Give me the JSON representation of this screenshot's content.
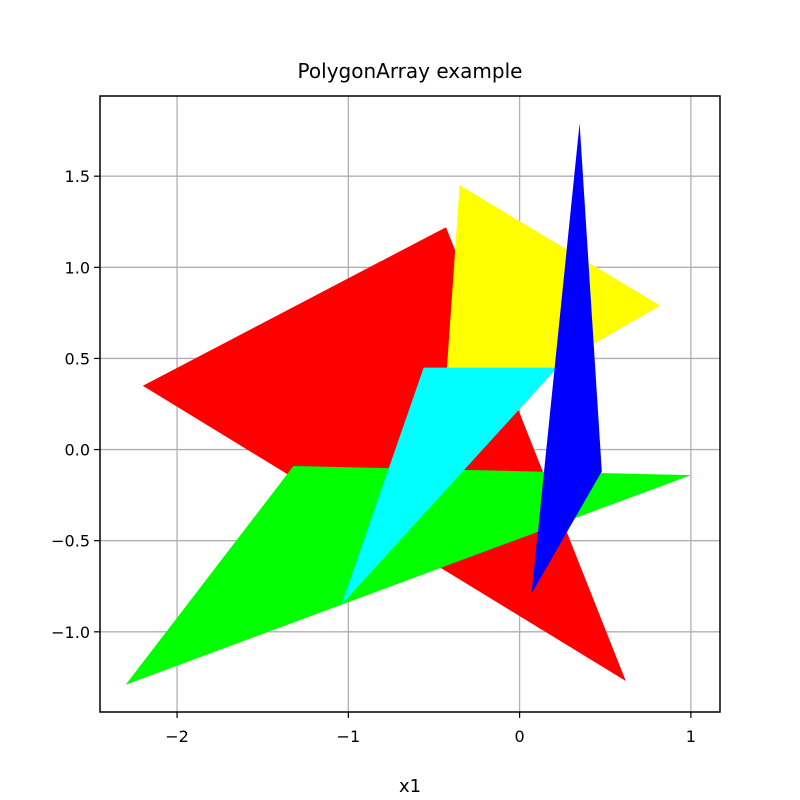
{
  "chart_data": {
    "type": "polygon",
    "title": "PolygonArray example",
    "xlabel": "x1",
    "ylabel": "",
    "xlim": [
      -2.45,
      1.17
    ],
    "ylim": [
      -1.44,
      1.94
    ],
    "xticks": [
      -2,
      -1,
      0,
      1
    ],
    "xtick_labels": [
      "−2",
      "−1",
      "0",
      "1"
    ],
    "yticks": [
      -1.0,
      -0.5,
      0.0,
      0.5,
      1.0,
      1.5
    ],
    "ytick_labels": [
      "−1.0",
      "−0.5",
      "0.0",
      "0.5",
      "1.0",
      "1.5"
    ],
    "grid": true,
    "polygons": [
      {
        "color": "#ff0000",
        "points": [
          [
            -2.2,
            0.35
          ],
          [
            -0.43,
            1.22
          ],
          [
            0.62,
            -1.27
          ]
        ]
      },
      {
        "color": "#ffff00",
        "points": [
          [
            -0.35,
            1.45
          ],
          [
            0.82,
            0.79
          ],
          [
            -0.45,
            0.1
          ]
        ]
      },
      {
        "color": "#00ff00",
        "points": [
          [
            -1.32,
            -0.09
          ],
          [
            1.0,
            -0.14
          ],
          [
            -2.3,
            -1.29
          ]
        ]
      },
      {
        "color": "#00ffff",
        "points": [
          [
            -0.56,
            0.45
          ],
          [
            0.22,
            0.45
          ],
          [
            -1.04,
            -0.85
          ]
        ]
      },
      {
        "color": "#0000ff",
        "points": [
          [
            0.35,
            1.79
          ],
          [
            0.48,
            -0.12
          ],
          [
            0.07,
            -0.79
          ]
        ]
      }
    ]
  }
}
